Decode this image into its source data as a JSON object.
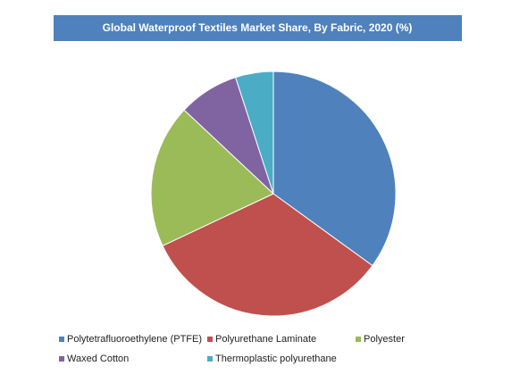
{
  "chart_data": {
    "type": "pie",
    "title": "Global Waterproof Textiles Market Share, By Fabric, 2020 (%)",
    "categories": [
      "Polytetrafluoroethylene (PTFE)",
      "Polyurethane Laminate",
      "Polyester",
      "Waxed Cotton",
      "Thermoplastic polyurethane"
    ],
    "values": [
      35,
      33,
      19,
      8,
      5
    ],
    "colors": [
      "#4f81bd",
      "#c0504d",
      "#9bbb59",
      "#8064a2",
      "#4bacc6"
    ],
    "legend": "bottom"
  }
}
